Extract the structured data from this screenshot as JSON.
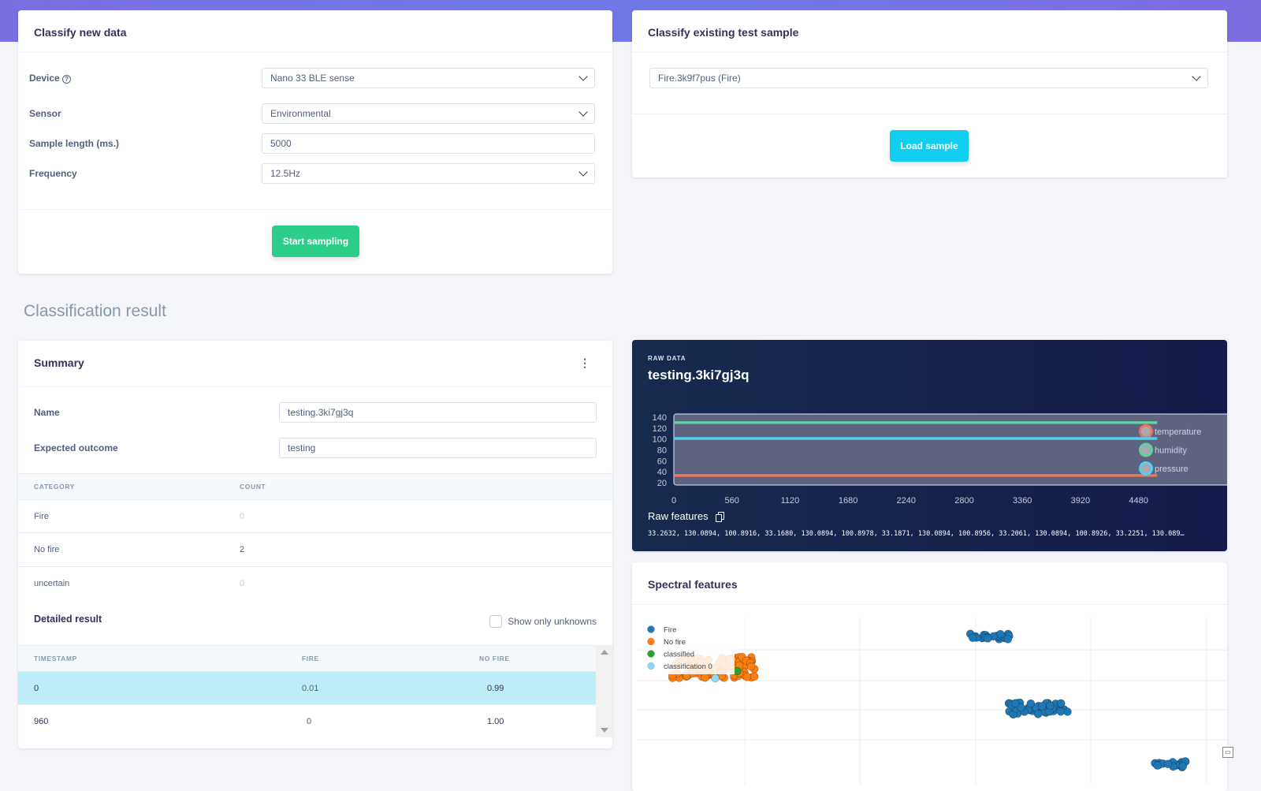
{
  "classify_new": {
    "title": "Classify new data",
    "device_label": "Device",
    "device_value": "Nano 33 BLE sense",
    "sensor_label": "Sensor",
    "sensor_value": "Environmental",
    "length_label": "Sample length (ms.)",
    "length_value": "5000",
    "freq_label": "Frequency",
    "freq_value": "12.5Hz",
    "start_button": "Start sampling"
  },
  "classify_existing": {
    "title": "Classify existing test sample",
    "sample_value": "Fire.3k9f7pus (Fire)",
    "load_button": "Load sample"
  },
  "section_title": "Classification result",
  "summary": {
    "title": "Summary",
    "name_label": "Name",
    "name_value": "testing.3ki7gj3q",
    "expected_label": "Expected outcome",
    "expected_value": "testing",
    "col_category": "CATEGORY",
    "col_count": "COUNT",
    "rows": [
      {
        "category": "Fire",
        "count": "0"
      },
      {
        "category": "No fire",
        "count": "2"
      },
      {
        "category": "uncertain",
        "count": "0"
      }
    ],
    "detailed_title": "Detailed result",
    "show_unknowns": "Show only unknowns",
    "detail_cols": [
      "TIMESTAMP",
      "FIRE",
      "NO FIRE"
    ],
    "detail_rows": [
      {
        "timestamp": "0",
        "fire": "0.01",
        "no_fire": "0.99"
      },
      {
        "timestamp": "960",
        "fire": "0",
        "no_fire": "1.00"
      }
    ]
  },
  "raw": {
    "eyebrow": "RAW DATA",
    "title": "testing.3ki7gj3q",
    "features_label": "Raw features",
    "features_text": "33.2632, 130.0894, 100.8916, 33.1680, 130.0894, 100.8978, 33.1871, 130.0894, 100.8956, 33.2061, 130.0894, 100.8926, 33.2251, 130.089…"
  },
  "spectral": {
    "title": "Spectral features"
  },
  "chart_data": [
    {
      "type": "line",
      "title": "testing.3ki7gj3q",
      "ylim": [
        20,
        140
      ],
      "yticks": [
        "140",
        "120",
        "100",
        "80",
        "60",
        "40",
        "20"
      ],
      "xlim": [
        0,
        5600
      ],
      "xticks": [
        "0",
        "560",
        "1120",
        "1680",
        "2240",
        "2800",
        "3360",
        "3920",
        "4480"
      ],
      "series": [
        {
          "name": "temperature",
          "color": "#f0735a",
          "x": [
            0,
            4660
          ],
          "y": [
            33.2,
            33.2
          ]
        },
        {
          "name": "humidity",
          "color": "#5fd39b",
          "x": [
            0,
            4660
          ],
          "y": [
            130.09,
            130.09
          ]
        },
        {
          "name": "pressure",
          "color": "#4fd0f0",
          "x": [
            0,
            4660
          ],
          "y": [
            100.89,
            100.89
          ]
        }
      ]
    },
    {
      "type": "scatter",
      "title": "Spectral features",
      "legend": "top-left",
      "xlim": [
        0,
        100
      ],
      "ylim": [
        0,
        100
      ],
      "xgrid": [
        18.3,
        37.8,
        57.4,
        76.9,
        96.5
      ],
      "ygrid": [
        19.3,
        39,
        58.3,
        78.6
      ],
      "series": [
        {
          "name": "Fire",
          "color": "#1f77b4",
          "clusters": [
            {
              "cx": 60,
              "cy": 87.5,
              "sx": 3.5,
              "sy": 2,
              "n": 25
            },
            {
              "cx": 68,
              "cy": 40,
              "sx": 5,
              "sy": 4,
              "n": 45
            },
            {
              "cx": 90,
              "cy": 3,
              "sx": 3,
              "sy": 2,
              "n": 18
            }
          ]
        },
        {
          "name": "No fire",
          "color": "#ff7f0e",
          "clusters": [
            {
              "cx": 13,
              "cy": 67,
              "sx": 7,
              "sy": 7,
              "n": 90
            }
          ]
        },
        {
          "name": "classified",
          "color": "#2ca02c",
          "points": [
            [
              17,
              64.6
            ]
          ]
        },
        {
          "name": "classification 0",
          "color": "#8fd7f5",
          "points": [
            [
              13.3,
              59.9
            ]
          ]
        }
      ]
    }
  ]
}
